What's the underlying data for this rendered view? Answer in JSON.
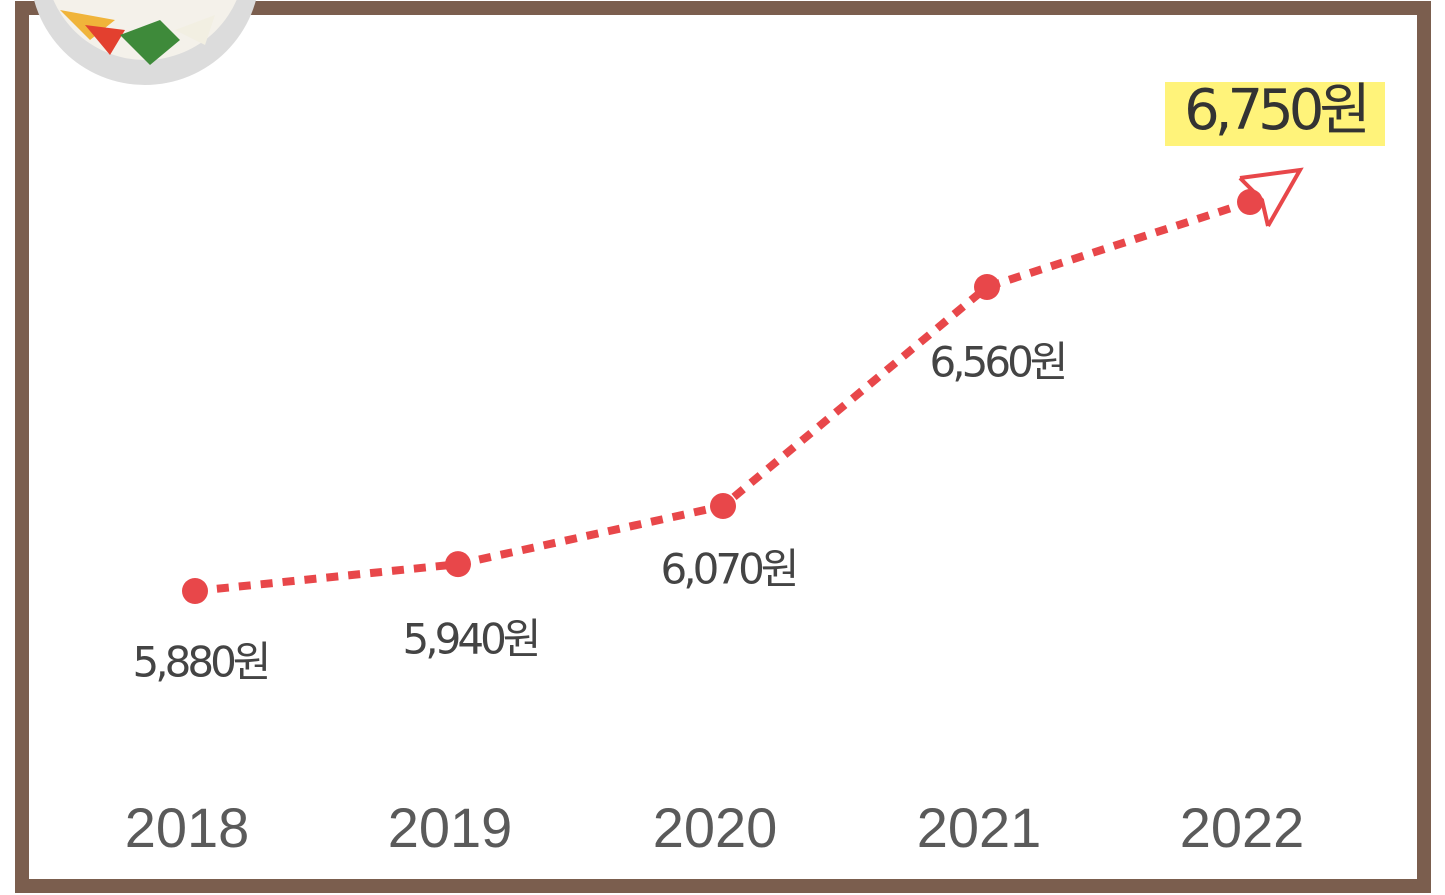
{
  "chart_data": {
    "type": "line",
    "categories": [
      "2018",
      "2019",
      "2020",
      "2021",
      "2022"
    ],
    "values": [
      5880,
      5940,
      6070,
      6560,
      6750
    ],
    "value_labels": [
      "5,880원",
      "5,940원",
      "6,070원",
      "6,560원",
      "6,750원"
    ],
    "color": "#e8474a"
  }
}
